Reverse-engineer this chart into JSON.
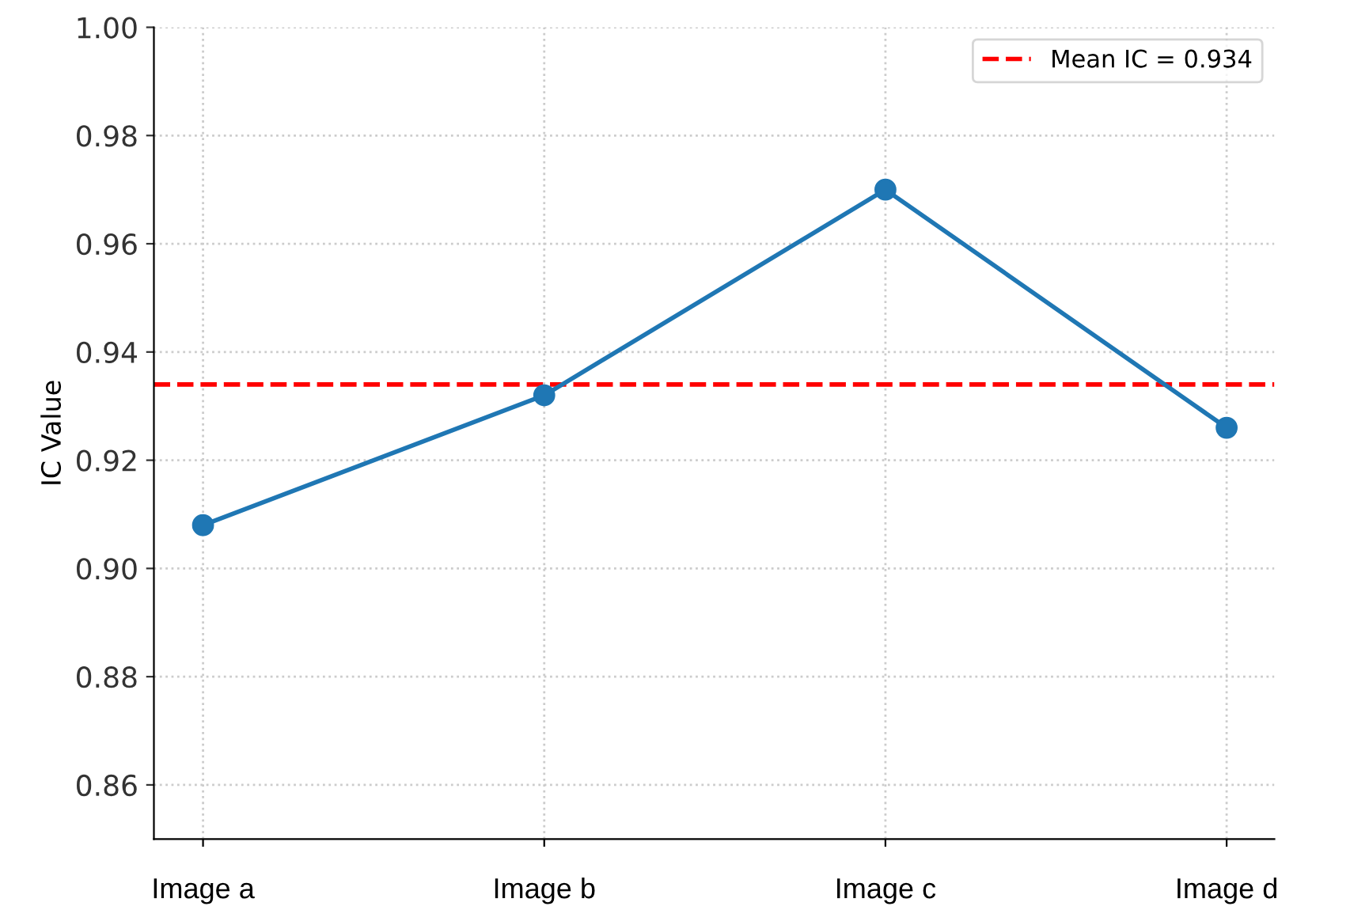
{
  "chart_data": {
    "type": "line",
    "ylabel": "IC Value",
    "categories": [
      "Image a",
      "Image b",
      "Image c",
      "Image d"
    ],
    "series": [
      {
        "color": "#1f77b4",
        "values": [
          0.908,
          0.932,
          0.97,
          0.926
        ]
      }
    ],
    "ylim": [
      0.85,
      1.0
    ],
    "yticks": [
      0.86,
      0.88,
      {
        "value": 0.9,
        "label": "0.90"
      },
      0.92,
      0.94,
      0.96,
      0.98,
      {
        "value": 1.0,
        "label": "1.00"
      }
    ],
    "ref_lines": [
      {
        "axis": "y",
        "value": 0.934,
        "label": "Mean IC = 0.934",
        "color": "#ff0000",
        "line_style": "dashed"
      }
    ],
    "grid": true,
    "legend": "top right",
    "marker": "circle",
    "line_style": "solid"
  }
}
